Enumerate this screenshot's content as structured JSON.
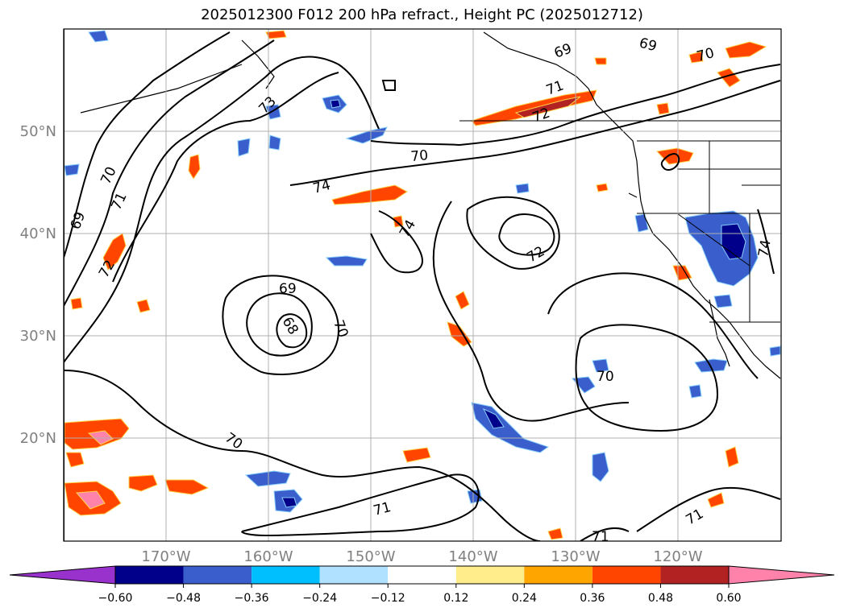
{
  "title": "2025012300 F012 200 hPa refract., Height PC (2025012712)",
  "latitude_labels": [
    "50°N",
    "40°N",
    "30°N",
    "20°N"
  ],
  "longitude_labels": [
    "170°W",
    "160°W",
    "150°W",
    "140°W",
    "130°W",
    "120°W"
  ],
  "contour_labels": [
    "69",
    "70",
    "71",
    "72",
    "73",
    "74",
    "74",
    "69",
    "68",
    "70",
    "72",
    "70",
    "70",
    "71",
    "71",
    "71",
    "72",
    "69",
    "70",
    "69",
    "70",
    "74",
    "71"
  ],
  "colorbar": {
    "tick_labels": [
      "−0.60",
      "−0.48",
      "−0.36",
      "−0.24",
      "−0.12",
      "0.12",
      "0.24",
      "0.36",
      "0.48",
      "0.60"
    ],
    "colors": [
      "#9932cc",
      "#00008b",
      "#3a5fcd",
      "#00bfff",
      "#b0e2ff",
      "#ffffff",
      "#ffec8b",
      "#ffa500",
      "#ff4500",
      "#b22222",
      "#ff82ab",
      "#ff82ab"
    ]
  },
  "colors": {
    "contour": "#000000",
    "grid": "#b0b0b0",
    "tick_text": "#808080"
  }
}
